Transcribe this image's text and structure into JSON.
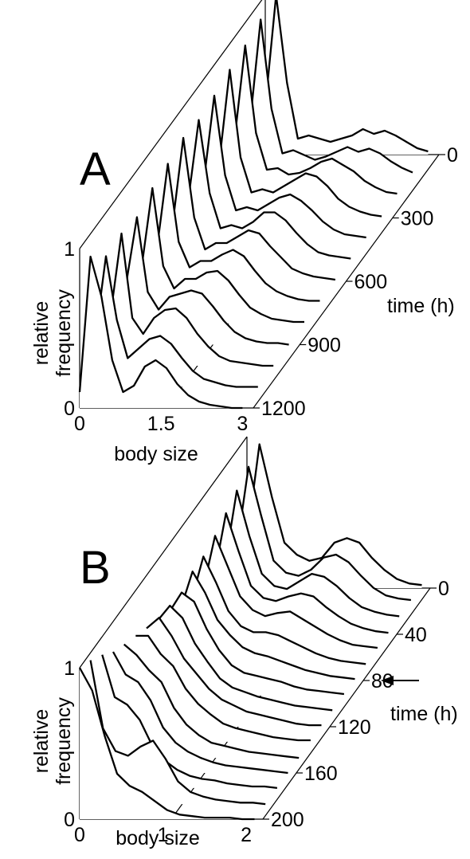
{
  "chart_data": [
    {
      "type": "line",
      "subtype": "waterfall-3d",
      "panel_label": "A",
      "xlabel": "body size",
      "ylabel": [
        "relative",
        "frequency"
      ],
      "zlabel": "time (h)",
      "x_ticks": [
        "0",
        "1.5",
        "3"
      ],
      "y_ticks": [
        "0",
        "1"
      ],
      "z_ticks": [
        "0",
        "300",
        "600",
        "900",
        "1200"
      ],
      "xlim": [
        0,
        3.2
      ],
      "ylim": [
        0,
        1
      ],
      "zlim": [
        0,
        1200
      ],
      "grid": false,
      "x": [
        0,
        0.2,
        0.4,
        0.6,
        0.8,
        1.0,
        1.2,
        1.4,
        1.6,
        1.8,
        2.0,
        2.2,
        2.4,
        2.6,
        2.8,
        3.0
      ],
      "series": [
        {
          "time": 0,
          "values": [
            0.3,
            1.0,
            0.45,
            0.1,
            0.12,
            0.1,
            0.08,
            0.1,
            0.12,
            0.16,
            0.13,
            0.15,
            0.12,
            0.08,
            0.04,
            0.02
          ]
        },
        {
          "time": 100,
          "values": [
            0.32,
            0.98,
            0.42,
            0.14,
            0.16,
            0.13,
            0.1,
            0.12,
            0.15,
            0.18,
            0.15,
            0.17,
            0.14,
            0.09,
            0.05,
            0.02
          ]
        },
        {
          "time": 200,
          "values": [
            0.35,
            0.95,
            0.4,
            0.17,
            0.18,
            0.14,
            0.15,
            0.18,
            0.22,
            0.24,
            0.2,
            0.16,
            0.1,
            0.06,
            0.03,
            0.02
          ]
        },
        {
          "time": 300,
          "values": [
            0.33,
            0.93,
            0.38,
            0.16,
            0.18,
            0.16,
            0.2,
            0.24,
            0.28,
            0.26,
            0.2,
            0.12,
            0.07,
            0.04,
            0.02,
            0.01
          ]
        },
        {
          "time": 400,
          "values": [
            0.34,
            0.9,
            0.4,
            0.18,
            0.2,
            0.18,
            0.22,
            0.26,
            0.28,
            0.24,
            0.18,
            0.11,
            0.06,
            0.03,
            0.02,
            0.01
          ]
        },
        {
          "time": 500,
          "values": [
            0.36,
            0.88,
            0.42,
            0.2,
            0.22,
            0.2,
            0.24,
            0.3,
            0.3,
            0.25,
            0.17,
            0.1,
            0.05,
            0.03,
            0.02,
            0.01
          ]
        },
        {
          "time": 600,
          "values": [
            0.35,
            0.9,
            0.4,
            0.2,
            0.24,
            0.24,
            0.28,
            0.32,
            0.3,
            0.22,
            0.15,
            0.08,
            0.05,
            0.03,
            0.02,
            0.01
          ]
        },
        {
          "time": 700,
          "values": [
            0.34,
            0.87,
            0.38,
            0.22,
            0.26,
            0.26,
            0.3,
            0.33,
            0.29,
            0.2,
            0.12,
            0.07,
            0.04,
            0.02,
            0.01,
            0.01
          ]
        },
        {
          "time": 800,
          "values": [
            0.35,
            0.85,
            0.36,
            0.22,
            0.28,
            0.28,
            0.32,
            0.33,
            0.27,
            0.18,
            0.1,
            0.06,
            0.03,
            0.02,
            0.01,
            0.01
          ]
        },
        {
          "time": 900,
          "values": [
            0.38,
            0.8,
            0.33,
            0.22,
            0.3,
            0.32,
            0.34,
            0.32,
            0.24,
            0.15,
            0.08,
            0.04,
            0.02,
            0.01,
            0.01,
            0.0
          ]
        },
        {
          "time": 1000,
          "values": [
            0.32,
            0.83,
            0.3,
            0.2,
            0.3,
            0.35,
            0.36,
            0.3,
            0.2,
            0.12,
            0.06,
            0.03,
            0.02,
            0.01,
            0.0,
            0.0
          ]
        },
        {
          "time": 1100,
          "values": [
            0.3,
            0.82,
            0.42,
            0.18,
            0.24,
            0.3,
            0.32,
            0.27,
            0.18,
            0.1,
            0.05,
            0.03,
            0.01,
            0.0,
            0.0,
            0.0
          ]
        },
        {
          "time": 1200,
          "values": [
            0.1,
            0.95,
            0.7,
            0.3,
            0.1,
            0.14,
            0.26,
            0.3,
            0.25,
            0.15,
            0.08,
            0.04,
            0.02,
            0.01,
            0.0,
            0.0
          ]
        }
      ]
    },
    {
      "type": "line",
      "subtype": "waterfall-3d",
      "panel_label": "B",
      "xlabel": "body size",
      "ylabel": [
        "relative",
        "frequency"
      ],
      "zlabel": "time (h)",
      "x_ticks": [
        "0",
        "1",
        "2"
      ],
      "y_ticks": [
        "0",
        "1"
      ],
      "z_ticks": [
        "0",
        "40",
        "80",
        "120",
        "160",
        "200"
      ],
      "annotation": "arrow at time = 80",
      "xlim": [
        0,
        2.2
      ],
      "ylim": [
        0,
        1
      ],
      "zlim": [
        0,
        200
      ],
      "grid": false,
      "x": [
        0,
        0.15,
        0.3,
        0.45,
        0.6,
        0.75,
        0.9,
        1.05,
        1.2,
        1.35,
        1.5,
        1.65,
        1.8,
        1.95,
        2.1
      ],
      "series": [
        {
          "time": 0,
          "values": [
            0.32,
            0.95,
            0.6,
            0.3,
            0.22,
            0.18,
            0.2,
            0.3,
            0.33,
            0.3,
            0.2,
            0.12,
            0.06,
            0.03,
            0.02
          ]
        },
        {
          "time": 13,
          "values": [
            0.33,
            0.9,
            0.58,
            0.28,
            0.2,
            0.18,
            0.22,
            0.3,
            0.32,
            0.27,
            0.18,
            0.1,
            0.05,
            0.03,
            0.02
          ]
        },
        {
          "time": 27,
          "values": [
            0.34,
            0.85,
            0.55,
            0.3,
            0.22,
            0.2,
            0.25,
            0.3,
            0.28,
            0.22,
            0.14,
            0.08,
            0.05,
            0.03,
            0.02
          ]
        },
        {
          "time": 40,
          "values": [
            0.36,
            0.8,
            0.55,
            0.32,
            0.24,
            0.22,
            0.25,
            0.27,
            0.25,
            0.18,
            0.12,
            0.07,
            0.04,
            0.02,
            0.01
          ]
        },
        {
          "time": 53,
          "values": [
            0.38,
            0.75,
            0.55,
            0.35,
            0.26,
            0.22,
            0.24,
            0.25,
            0.2,
            0.15,
            0.1,
            0.06,
            0.03,
            0.02,
            0.01
          ]
        },
        {
          "time": 67,
          "values": [
            0.42,
            0.72,
            0.55,
            0.36,
            0.26,
            0.22,
            0.22,
            0.2,
            0.16,
            0.12,
            0.08,
            0.05,
            0.03,
            0.02,
            0.01
          ]
        },
        {
          "time": 80,
          "values": [
            0.46,
            0.72,
            0.58,
            0.4,
            0.3,
            0.22,
            0.18,
            0.16,
            0.13,
            0.1,
            0.07,
            0.05,
            0.03,
            0.02,
            0.01
          ]
        },
        {
          "time": 93,
          "values": [
            0.55,
            0.68,
            0.62,
            0.44,
            0.3,
            0.2,
            0.15,
            0.13,
            0.11,
            0.09,
            0.06,
            0.04,
            0.03,
            0.02,
            0.01
          ]
        },
        {
          "time": 107,
          "values": [
            0.6,
            0.7,
            0.62,
            0.45,
            0.33,
            0.22,
            0.16,
            0.13,
            0.1,
            0.08,
            0.06,
            0.04,
            0.03,
            0.02,
            0.01
          ]
        },
        {
          "time": 120,
          "values": [
            0.65,
            0.72,
            0.6,
            0.45,
            0.35,
            0.25,
            0.18,
            0.14,
            0.1,
            0.08,
            0.06,
            0.04,
            0.02,
            0.01,
            0.01
          ]
        },
        {
          "time": 133,
          "values": [
            0.7,
            0.7,
            0.58,
            0.5,
            0.35,
            0.25,
            0.18,
            0.12,
            0.09,
            0.07,
            0.05,
            0.03,
            0.02,
            0.01,
            0.01
          ]
        },
        {
          "time": 147,
          "values": [
            0.75,
            0.68,
            0.58,
            0.5,
            0.33,
            0.22,
            0.15,
            0.1,
            0.08,
            0.06,
            0.04,
            0.03,
            0.02,
            0.01,
            0.0
          ]
        },
        {
          "time": 160,
          "values": [
            0.8,
            0.65,
            0.6,
            0.48,
            0.3,
            0.2,
            0.14,
            0.1,
            0.07,
            0.05,
            0.04,
            0.03,
            0.02,
            0.01,
            0.0
          ]
        },
        {
          "time": 173,
          "values": [
            0.88,
            0.6,
            0.55,
            0.45,
            0.28,
            0.18,
            0.12,
            0.08,
            0.06,
            0.05,
            0.03,
            0.02,
            0.01,
            0.01,
            0.0
          ]
        },
        {
          "time": 187,
          "values": [
            0.95,
            0.5,
            0.35,
            0.32,
            0.38,
            0.42,
            0.3,
            0.15,
            0.08,
            0.05,
            0.03,
            0.02,
            0.01,
            0.01,
            0.0
          ]
        },
        {
          "time": 200,
          "values": [
            1.0,
            0.85,
            0.55,
            0.3,
            0.22,
            0.18,
            0.12,
            0.06,
            0.03,
            0.02,
            0.01,
            0.01,
            0.01,
            0.0,
            0.0
          ]
        }
      ]
    }
  ]
}
